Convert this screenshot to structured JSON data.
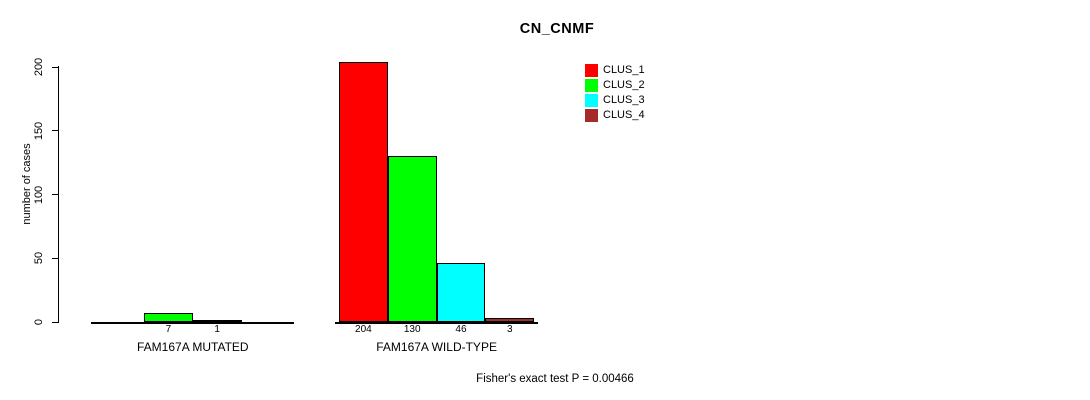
{
  "title": "CN_CNMF",
  "footer": "Fisher's exact test P = 0.00466",
  "chart_data": {
    "type": "bar",
    "title": "CN_CNMF",
    "xlabel": "",
    "ylabel": "number of cases",
    "categories": [
      "FAM167A MUTATED",
      "FAM167A WILD-TYPE"
    ],
    "series": [
      {
        "name": "CLUS_1",
        "color": "#FF0000",
        "values": [
          0,
          204
        ]
      },
      {
        "name": "CLUS_2",
        "color": "#00FF00",
        "values": [
          7,
          130
        ]
      },
      {
        "name": "CLUS_3",
        "color": "#00FFFF",
        "values": [
          1,
          46
        ]
      },
      {
        "name": "CLUS_4",
        "color": "#A52A2A",
        "values": [
          0,
          3
        ]
      }
    ],
    "bar_value_labels": [
      [
        "7",
        "1"
      ],
      [
        "204",
        "130",
        "46",
        "3"
      ]
    ],
    "zero_bars_not_drawn": true,
    "yticks": [
      0,
      50,
      100,
      150,
      200
    ],
    "ylim": [
      0,
      204
    ],
    "grid": false,
    "legend_position": "top-right",
    "legend_entries": [
      "CLUS_1",
      "CLUS_2",
      "CLUS_3",
      "CLUS_4"
    ],
    "annotation": "Fisher's exact test P = 0.00466"
  }
}
